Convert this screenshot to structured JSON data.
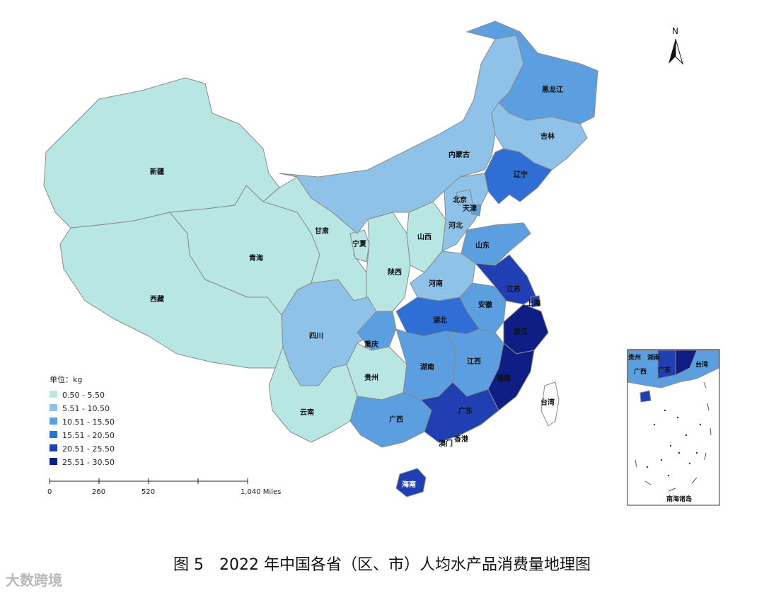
{
  "colors": {
    "c1": "#b8e6e3",
    "c2": "#8fc2e8",
    "c3": "#5b9fe0",
    "c4": "#2f6ed4",
    "c5": "#1f3fb3",
    "c6": "#0e1e85"
  },
  "legend": {
    "title": "单位：kg",
    "items": [
      {
        "label": "0.50 - 5.50",
        "color": "#b8e6e3"
      },
      {
        "label": "5.51 - 10.50",
        "color": "#8fc2e8"
      },
      {
        "label": "10.51 - 15.50",
        "color": "#5b9fe0"
      },
      {
        "label": "15.51 - 20.50",
        "color": "#2f6ed4"
      },
      {
        "label": "20.51 - 25.50",
        "color": "#1f3fb3"
      },
      {
        "label": "25.51 - 30.50",
        "color": "#0e1e85"
      }
    ]
  },
  "scale_bar": {
    "ticks": [
      "0",
      "260",
      "520",
      "1,040 Miles"
    ]
  },
  "north_label": "N",
  "provinces": [
    {
      "name": "新疆",
      "class": 1
    },
    {
      "name": "西藏",
      "class": 1
    },
    {
      "name": "青海",
      "class": 1
    },
    {
      "name": "甘肃",
      "class": 1
    },
    {
      "name": "宁夏",
      "class": 1
    },
    {
      "name": "陕西",
      "class": 1
    },
    {
      "name": "山西",
      "class": 1
    },
    {
      "name": "云南",
      "class": 1
    },
    {
      "name": "贵州",
      "class": 1
    },
    {
      "name": "四川",
      "class": 2
    },
    {
      "name": "内蒙古",
      "class": 2
    },
    {
      "name": "河南",
      "class": 2
    },
    {
      "name": "河北",
      "class": 2
    },
    {
      "name": "吉林",
      "class": 2
    },
    {
      "name": "北京",
      "class": 2
    },
    {
      "name": "天津",
      "class": 3
    },
    {
      "name": "黑龙江",
      "class": 3
    },
    {
      "name": "山东",
      "class": 3
    },
    {
      "name": "重庆",
      "class": 3
    },
    {
      "name": "安徽",
      "class": 3
    },
    {
      "name": "江西",
      "class": 3
    },
    {
      "name": "湖南",
      "class": 3
    },
    {
      "name": "广西",
      "class": 3
    },
    {
      "name": "辽宁",
      "class": 4
    },
    {
      "name": "湖北",
      "class": 4
    },
    {
      "name": "江苏",
      "class": 5
    },
    {
      "name": "广东",
      "class": 5
    },
    {
      "name": "上海",
      "class": 5
    },
    {
      "name": "浙江",
      "class": 6
    },
    {
      "name": "福建",
      "class": 6
    },
    {
      "name": "海南",
      "class": 5
    },
    {
      "name": "台湾",
      "class": 0
    },
    {
      "name": "香港",
      "class": 5
    },
    {
      "name": "澳门",
      "class": 5
    }
  ],
  "inset": {
    "title": "南海诸岛",
    "labels": [
      "贵州",
      "湖南",
      "广西",
      "广东",
      "台湾"
    ]
  },
  "caption": "图 5　2022 年中国各省（区、市）人均水产品消费量地理图",
  "watermark": "大数跨境"
}
